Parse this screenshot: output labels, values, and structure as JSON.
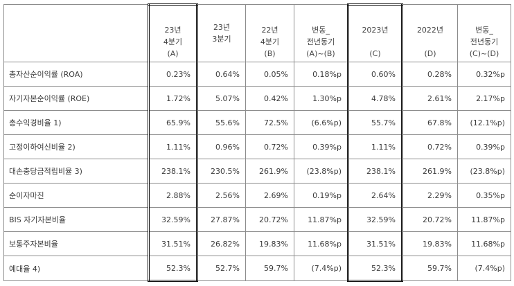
{
  "table": {
    "headers": [
      {
        "lines": [
          ""
        ]
      },
      {
        "lines": [
          "23년",
          "4분기",
          "(A)"
        ]
      },
      {
        "lines": [
          "23년",
          "3분기"
        ]
      },
      {
        "lines": [
          "22년",
          "4분기",
          "(B)"
        ]
      },
      {
        "lines": [
          "변동_",
          "전년동기",
          "(A)~(B)"
        ]
      },
      {
        "lines": [
          "2023년",
          "",
          "(C)"
        ]
      },
      {
        "lines": [
          "2022년",
          "",
          "(D)"
        ]
      },
      {
        "lines": [
          "변동_",
          "전년동기",
          "(C)~(D)"
        ]
      }
    ],
    "rows": [
      {
        "label": "총자산순이익률 (ROA)",
        "values": [
          "0.23%",
          "0.64%",
          "0.05%",
          "0.18%p",
          "0.60%",
          "0.28%",
          "0.32%p"
        ]
      },
      {
        "label": "자기자본순이익률 (ROE)",
        "values": [
          "1.72%",
          "5.07%",
          "0.42%",
          "1.30%p",
          "4.78%",
          "2.61%",
          "2.17%p"
        ]
      },
      {
        "label": "총수익경비율 1)",
        "values": [
          "65.9%",
          "55.6%",
          "72.5%",
          "(6.6%p)",
          "55.7%",
          "67.8%",
          "(12.1%p)"
        ]
      },
      {
        "label": "고정이하여신비율 2)",
        "values": [
          "1.11%",
          "0.96%",
          "0.72%",
          "0.39%p",
          "1.11%",
          "0.72%",
          "0.39%p"
        ]
      },
      {
        "label": "대손충당금적립비율 3)",
        "values": [
          "238.1%",
          "230.5%",
          "261.9%",
          "(23.8%p)",
          "238.1%",
          "261.9%",
          "(23.8%p)"
        ]
      },
      {
        "label": "순이자마진",
        "values": [
          "2.88%",
          "2.56%",
          "2.69%",
          "0.19%p",
          "2.64%",
          "2.29%",
          "0.35%p"
        ]
      },
      {
        "label": "BIS 자기자본비율",
        "values": [
          "32.59%",
          "27.87%",
          "20.72%",
          "11.87%p",
          "32.59%",
          "20.72%",
          "11.87%p"
        ]
      },
      {
        "label": "보통주자본비율",
        "values": [
          "31.51%",
          "26.82%",
          "19.83%",
          "11.68%p",
          "31.51%",
          "19.83%",
          "11.68%p"
        ]
      },
      {
        "label": "예대율 4)",
        "values": [
          "52.3%",
          "52.7%",
          "59.7%",
          "(7.4%p)",
          "52.3%",
          "59.7%",
          "(7.4%p)"
        ]
      }
    ]
  }
}
